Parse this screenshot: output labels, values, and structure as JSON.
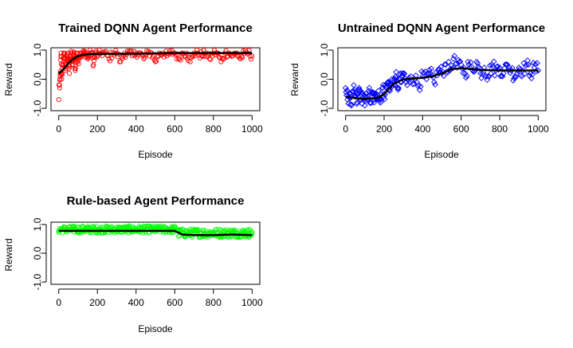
{
  "chart_data": [
    {
      "type": "scatter",
      "title": "Trained DQNN Agent Performance",
      "xlabel": "Episode",
      "ylabel": "Reward",
      "xlim": [
        0,
        1000
      ],
      "ylim": [
        -1.0,
        1.0
      ],
      "xticks": [
        "0",
        "200",
        "400",
        "600",
        "800",
        "1000"
      ],
      "yticks": [
        "-1.0",
        "0.0",
        "1.0"
      ],
      "point_color": "#ff0000",
      "marker": "open-circle",
      "trend_color": "#000000",
      "series": [
        {
          "values_description_free": true,
          "points": [
            [
              0,
              -0.7
            ],
            [
              5,
              -0.3
            ],
            [
              8,
              0.2
            ],
            [
              12,
              0.9
            ],
            [
              15,
              0.0
            ],
            [
              20,
              0.5
            ],
            [
              25,
              0.7
            ],
            [
              30,
              0.9
            ],
            [
              35,
              0.3
            ],
            [
              40,
              0.8
            ],
            [
              45,
              0.6
            ],
            [
              50,
              0.9
            ],
            [
              55,
              0.2
            ],
            [
              60,
              0.7
            ],
            [
              65,
              0.9
            ],
            [
              70,
              0.5
            ],
            [
              75,
              0.8
            ],
            [
              80,
              0.9
            ],
            [
              85,
              0.3
            ],
            [
              90,
              0.7
            ],
            [
              95,
              0.9
            ],
            [
              100,
              0.6
            ],
            [
              110,
              0.9
            ],
            [
              120,
              0.8
            ],
            [
              130,
              0.9
            ],
            [
              140,
              0.9
            ],
            [
              150,
              0.7
            ],
            [
              160,
              0.9
            ],
            [
              170,
              0.9
            ],
            [
              180,
              0.5
            ],
            [
              190,
              0.9
            ],
            [
              200,
              0.8
            ],
            [
              220,
              0.9
            ],
            [
              240,
              0.9
            ],
            [
              260,
              0.7
            ],
            [
              280,
              0.9
            ],
            [
              300,
              0.9
            ],
            [
              320,
              0.6
            ],
            [
              340,
              0.9
            ],
            [
              360,
              0.9
            ],
            [
              380,
              0.8
            ],
            [
              400,
              0.9
            ],
            [
              420,
              0.9
            ],
            [
              440,
              0.7
            ],
            [
              460,
              0.9
            ],
            [
              480,
              0.9
            ],
            [
              500,
              0.6
            ],
            [
              520,
              0.9
            ],
            [
              540,
              0.9
            ],
            [
              560,
              0.8
            ],
            [
              580,
              0.9
            ],
            [
              600,
              0.9
            ],
            [
              620,
              0.7
            ],
            [
              640,
              0.9
            ],
            [
              660,
              0.9
            ],
            [
              680,
              0.6
            ],
            [
              700,
              0.9
            ],
            [
              720,
              0.9
            ],
            [
              740,
              0.8
            ],
            [
              760,
              0.9
            ],
            [
              780,
              0.7
            ],
            [
              800,
              0.9
            ],
            [
              820,
              0.9
            ],
            [
              840,
              0.6
            ],
            [
              860,
              0.9
            ],
            [
              880,
              0.9
            ],
            [
              900,
              0.8
            ],
            [
              920,
              0.9
            ],
            [
              940,
              0.7
            ],
            [
              960,
              0.9
            ],
            [
              980,
              0.9
            ],
            [
              1000,
              0.8
            ]
          ],
          "trend": [
            [
              0,
              0.2
            ],
            [
              25,
              0.35
            ],
            [
              50,
              0.55
            ],
            [
              75,
              0.7
            ],
            [
              100,
              0.8
            ],
            [
              150,
              0.86
            ],
            [
              200,
              0.87
            ],
            [
              400,
              0.88
            ],
            [
              600,
              0.9
            ],
            [
              800,
              0.9
            ],
            [
              1000,
              0.9
            ]
          ]
        }
      ]
    },
    {
      "type": "scatter",
      "title": "Untrained DQNN Agent Performance",
      "xlabel": "Episode",
      "ylabel": "Reward",
      "xlim": [
        0,
        1000
      ],
      "ylim": [
        -1.0,
        1.0
      ],
      "xticks": [
        "0",
        "200",
        "400",
        "600",
        "800",
        "1000"
      ],
      "yticks": [
        "-1.0",
        "0.0",
        "1.0"
      ],
      "point_color": "#0000ff",
      "marker": "open-diamond",
      "trend_color": "#000000",
      "series": [
        {
          "points": [
            [
              0,
              -0.3
            ],
            [
              10,
              -0.7
            ],
            [
              20,
              -0.5
            ],
            [
              30,
              -0.9
            ],
            [
              40,
              -0.4
            ],
            [
              50,
              -0.6
            ],
            [
              60,
              -0.8
            ],
            [
              70,
              -0.3
            ],
            [
              80,
              -0.7
            ],
            [
              90,
              -0.5
            ],
            [
              100,
              -0.9
            ],
            [
              110,
              -0.6
            ],
            [
              120,
              -0.4
            ],
            [
              130,
              -0.8
            ],
            [
              140,
              -0.5
            ],
            [
              150,
              -0.7
            ],
            [
              160,
              -0.6
            ],
            [
              170,
              -0.4
            ],
            [
              180,
              -0.8
            ],
            [
              190,
              -0.3
            ],
            [
              200,
              -0.5
            ],
            [
              210,
              -0.3
            ],
            [
              220,
              -0.1
            ],
            [
              230,
              -0.4
            ],
            [
              240,
              0.0
            ],
            [
              250,
              -0.2
            ],
            [
              260,
              0.1
            ],
            [
              270,
              -0.3
            ],
            [
              280,
              0.0
            ],
            [
              290,
              -0.1
            ],
            [
              300,
              0.2
            ],
            [
              320,
              -0.2
            ],
            [
              340,
              0.1
            ],
            [
              360,
              0.0
            ],
            [
              380,
              -0.2
            ],
            [
              400,
              0.1
            ],
            [
              420,
              0.0
            ],
            [
              440,
              0.2
            ],
            [
              460,
              -0.1
            ],
            [
              480,
              0.3
            ],
            [
              500,
              0.2
            ],
            [
              520,
              0.5
            ],
            [
              540,
              0.3
            ],
            [
              560,
              0.7
            ],
            [
              580,
              0.4
            ],
            [
              600,
              0.5
            ],
            [
              620,
              0.2
            ],
            [
              640,
              0.5
            ],
            [
              660,
              0.3
            ],
            [
              680,
              0.6
            ],
            [
              700,
              0.2
            ],
            [
              720,
              0.4
            ],
            [
              740,
              0.1
            ],
            [
              760,
              0.5
            ],
            [
              780,
              0.3
            ],
            [
              800,
              0.4
            ],
            [
              820,
              0.2
            ],
            [
              840,
              0.5
            ],
            [
              860,
              0.3
            ],
            [
              880,
              0.1
            ],
            [
              900,
              0.4
            ],
            [
              920,
              0.3
            ],
            [
              940,
              0.5
            ],
            [
              960,
              0.2
            ],
            [
              980,
              0.4
            ],
            [
              1000,
              0.3
            ]
          ],
          "trend": [
            [
              0,
              -0.6
            ],
            [
              50,
              -0.65
            ],
            [
              100,
              -0.68
            ],
            [
              150,
              -0.65
            ],
            [
              180,
              -0.6
            ],
            [
              200,
              -0.5
            ],
            [
              250,
              -0.15
            ],
            [
              300,
              0.0
            ],
            [
              350,
              0.02
            ],
            [
              400,
              0.05
            ],
            [
              450,
              0.1
            ],
            [
              500,
              0.2
            ],
            [
              550,
              0.35
            ],
            [
              600,
              0.38
            ],
            [
              700,
              0.32
            ],
            [
              800,
              0.3
            ],
            [
              900,
              0.3
            ],
            [
              1000,
              0.3
            ]
          ]
        }
      ]
    },
    {
      "type": "scatter",
      "title": "Rule-based Agent Performance",
      "xlabel": "Episode",
      "ylabel": "Reward",
      "xlim": [
        0,
        1000
      ],
      "ylim": [
        -1.0,
        1.0
      ],
      "xticks": [
        "0",
        "200",
        "400",
        "600",
        "800",
        "1000"
      ],
      "yticks": [
        "-1.0",
        "0.0",
        "1.0"
      ],
      "point_color": "#00ff00",
      "marker": "open-circle",
      "trend_color": "#000000",
      "series": [
        {
          "band": [
            [
              0,
              0.7,
              0.95
            ],
            [
              600,
              0.7,
              0.95
            ],
            [
              620,
              0.55,
              0.85
            ],
            [
              1000,
              0.55,
              0.85
            ]
          ],
          "trend": [
            [
              0,
              0.78
            ],
            [
              300,
              0.78
            ],
            [
              600,
              0.78
            ],
            [
              640,
              0.65
            ],
            [
              700,
              0.63
            ],
            [
              800,
              0.63
            ],
            [
              900,
              0.65
            ],
            [
              1000,
              0.63
            ]
          ]
        }
      ]
    }
  ]
}
